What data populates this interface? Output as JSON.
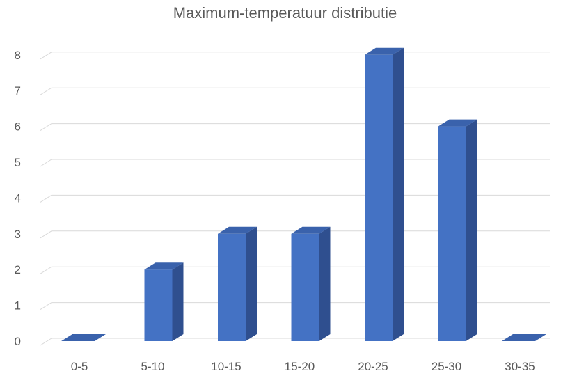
{
  "chart_data": {
    "type": "bar",
    "title": "Maximum-temperatuur distributie",
    "categories": [
      "0-5",
      "5-10",
      "10-15",
      "15-20",
      "20-25",
      "25-30",
      "30-35"
    ],
    "values": [
      0,
      2,
      3,
      3,
      8,
      6,
      0
    ],
    "yticks": [
      0,
      1,
      2,
      3,
      4,
      5,
      6,
      7,
      8
    ],
    "ylim": [
      0,
      8
    ],
    "xlabel": "",
    "ylabel": "",
    "grid": true,
    "legend": "none",
    "bar_style": "3d-column",
    "colors": {
      "bar_front": "#4472C4",
      "bar_side": "#2F4F8F",
      "bar_top": "#3A62AC",
      "gridline": "#D9D9D9",
      "text": "#595959"
    }
  }
}
